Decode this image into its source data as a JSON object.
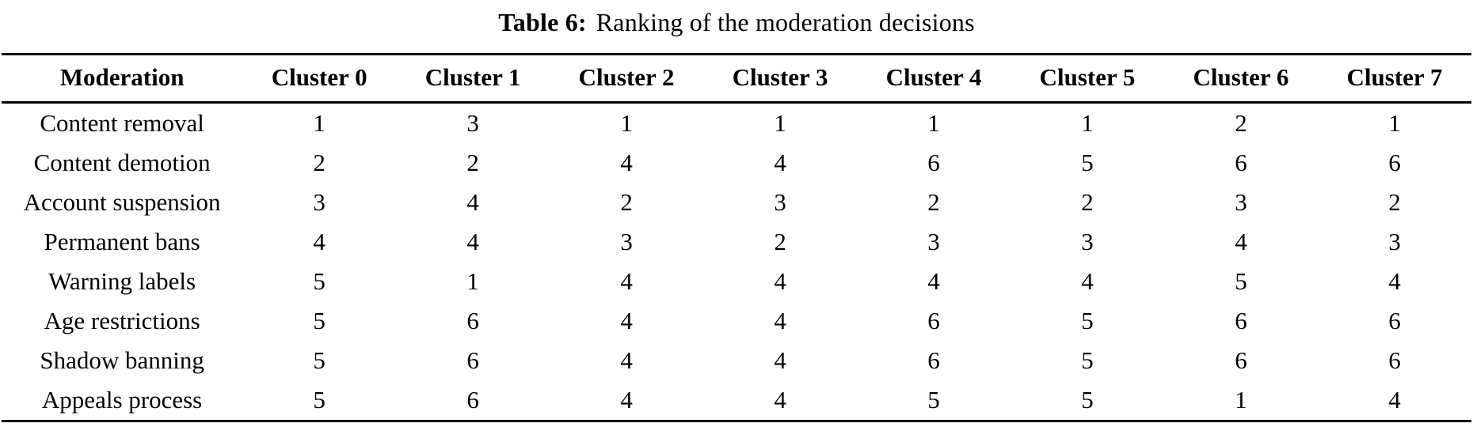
{
  "caption": {
    "label": "Table 6:",
    "text": "Ranking of the moderation decisions"
  },
  "table": {
    "columns": [
      "Moderation",
      "Cluster 0",
      "Cluster 1",
      "Cluster 2",
      "Cluster 3",
      "Cluster 4",
      "Cluster 5",
      "Cluster 6",
      "Cluster 7"
    ],
    "rows": [
      {
        "label": "Content removal",
        "values": [
          1,
          3,
          1,
          1,
          1,
          1,
          2,
          1
        ]
      },
      {
        "label": "Content demotion",
        "values": [
          2,
          2,
          4,
          4,
          6,
          5,
          6,
          6
        ]
      },
      {
        "label": "Account suspension",
        "values": [
          3,
          4,
          2,
          3,
          2,
          2,
          3,
          2
        ]
      },
      {
        "label": "Permanent bans",
        "values": [
          4,
          4,
          3,
          2,
          3,
          3,
          4,
          3
        ]
      },
      {
        "label": "Warning labels",
        "values": [
          5,
          1,
          4,
          4,
          4,
          4,
          5,
          4
        ]
      },
      {
        "label": "Age restrictions",
        "values": [
          5,
          6,
          4,
          4,
          6,
          5,
          6,
          6
        ]
      },
      {
        "label": "Shadow banning",
        "values": [
          5,
          6,
          4,
          4,
          6,
          5,
          6,
          6
        ]
      },
      {
        "label": "Appeals process",
        "values": [
          5,
          6,
          4,
          4,
          5,
          5,
          1,
          4
        ]
      }
    ]
  }
}
